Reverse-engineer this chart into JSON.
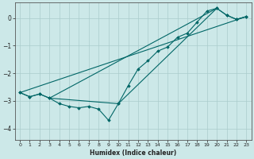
{
  "xlabel": "Humidex (Indice chaleur)",
  "background_color": "#cce8e8",
  "grid_color": "#aacccc",
  "line_color": "#006666",
  "xlim": [
    -0.5,
    23.5
  ],
  "ylim": [
    -4.4,
    0.55
  ],
  "xticks": [
    0,
    1,
    2,
    3,
    4,
    5,
    6,
    7,
    8,
    9,
    10,
    11,
    12,
    13,
    14,
    15,
    16,
    17,
    18,
    19,
    20,
    21,
    22,
    23
  ],
  "yticks": [
    0,
    -1,
    -2,
    -3,
    -4
  ],
  "line1_x": [
    0,
    1,
    2,
    3,
    4,
    5,
    6,
    7,
    8,
    9,
    10,
    11,
    12,
    13,
    14,
    15,
    16,
    17,
    18,
    19,
    20,
    21,
    22,
    23
  ],
  "line1_y": [
    -2.7,
    -2.85,
    -2.75,
    -2.9,
    -3.1,
    -3.2,
    -3.25,
    -3.2,
    -3.3,
    -3.7,
    -3.1,
    -2.45,
    -1.85,
    -1.55,
    -1.2,
    -1.05,
    -0.7,
    -0.55,
    -0.15,
    0.25,
    0.35,
    0.1,
    -0.05,
    0.05
  ],
  "line2_x": [
    0,
    1,
    2,
    3,
    10,
    20,
    21,
    22,
    23
  ],
  "line2_y": [
    -2.7,
    -2.85,
    -2.75,
    -2.9,
    -3.1,
    0.35,
    0.1,
    -0.05,
    0.05
  ],
  "line3_x": [
    0,
    23
  ],
  "line3_y": [
    -2.7,
    0.05
  ],
  "line4_x": [
    3,
    20
  ],
  "line4_y": [
    -2.9,
    0.35
  ],
  "figsize": [
    3.2,
    2.0
  ],
  "dpi": 100
}
